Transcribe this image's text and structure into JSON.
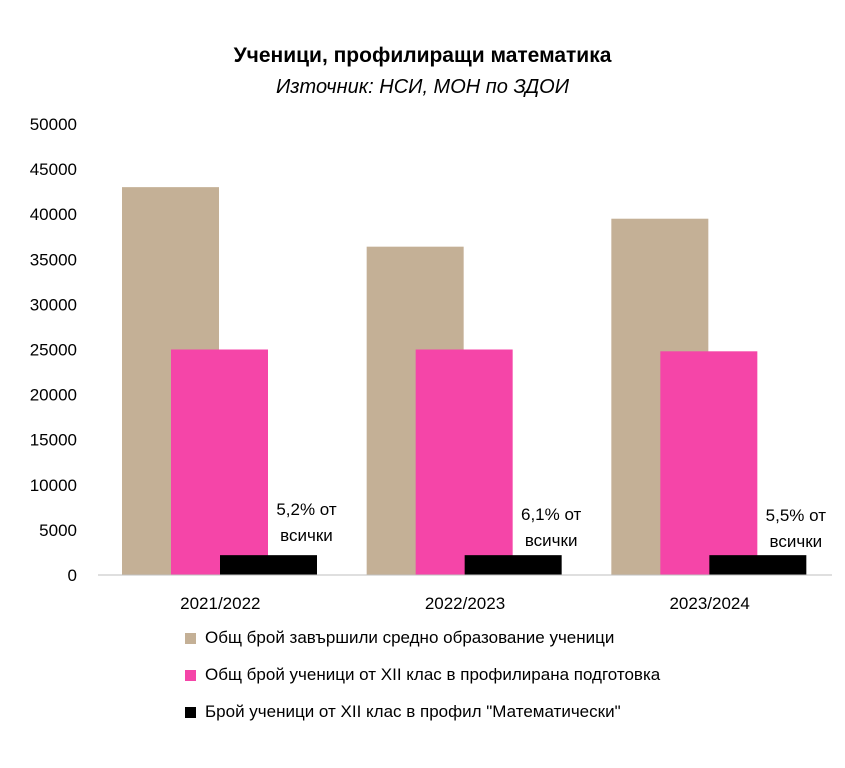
{
  "chart_data": {
    "type": "bar",
    "title": "Ученици, профилиращи математика",
    "subtitle": "Източник: НСИ, МОН по ЗДОИ",
    "categories": [
      "2021/2022",
      "2022/2023",
      "2023/2024"
    ],
    "ylim": [
      0,
      50000
    ],
    "yticks": [
      0,
      5000,
      10000,
      15000,
      20000,
      25000,
      30000,
      35000,
      40000,
      45000,
      50000
    ],
    "grid": false,
    "legend": "bottom",
    "series": [
      {
        "name": "Общ брой завършили средно образование ученици",
        "color": "#c4b096",
        "values": [
          43000,
          36400,
          39500
        ]
      },
      {
        "name": "Общ брой ученици от XII клас в профилирана подготовка",
        "color": "#f545a8",
        "values": [
          25000,
          25000,
          24800
        ]
      },
      {
        "name": "Брой ученици от XII клас в профил  \"Математически\"",
        "color": "#000000",
        "values": [
          2200,
          2200,
          2200
        ]
      }
    ],
    "annotations": [
      {
        "category": "2021/2022",
        "lines": [
          "5,2% от",
          "всички"
        ]
      },
      {
        "category": "2022/2023",
        "lines": [
          "6,1% от",
          "всички"
        ]
      },
      {
        "category": "2023/2024",
        "lines": [
          "5,5% от",
          "всички"
        ]
      }
    ]
  }
}
